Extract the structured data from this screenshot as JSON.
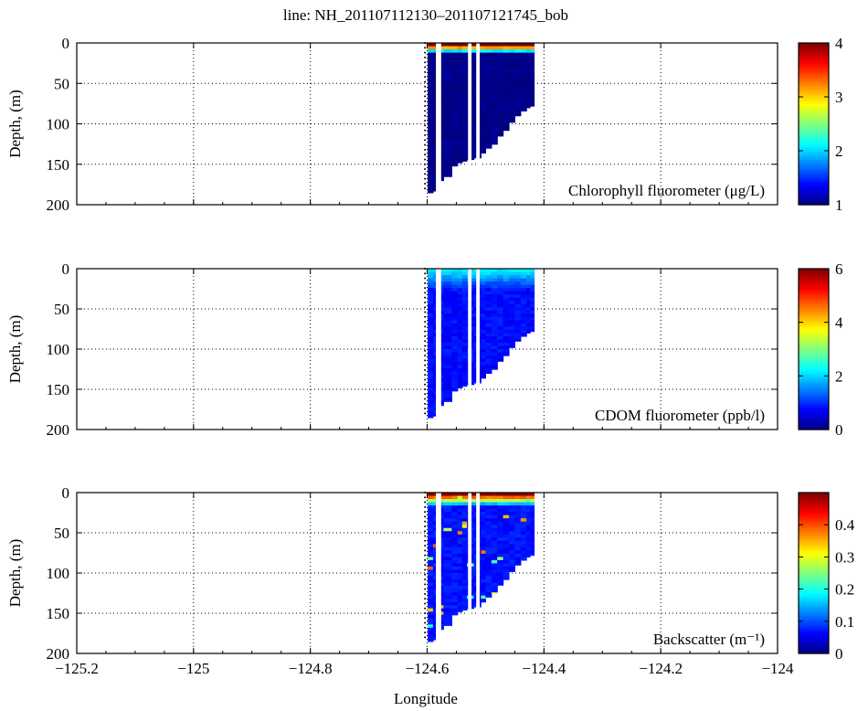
{
  "figure": {
    "title": "line: NH_201107112130–201107121745_bob",
    "xlabel": "Longitude"
  },
  "chart_data": [
    {
      "type": "heatmap",
      "variable": "chlorophyll",
      "annotation": "Chlorophyll fluorometer (μg/L)",
      "ylabel": "Depth, (m)",
      "xlim": [
        -125.2,
        -124.0
      ],
      "ylim": [
        200,
        0
      ],
      "xticks": [
        -125.2,
        -125,
        -124.8,
        -124.6,
        -124.4,
        -124.2,
        -124
      ],
      "yticks": [
        0,
        50,
        100,
        150,
        200
      ],
      "grid": true,
      "colorbar": {
        "range": [
          1,
          4
        ],
        "ticks": [
          1,
          2,
          3,
          4
        ],
        "colormap": "jet"
      },
      "values": {
        "background": 1.0,
        "surface": 4.2,
        "surface_depth": 12
      }
    },
    {
      "type": "heatmap",
      "variable": "cdom",
      "annotation": "CDOM fluorometer (ppb/l)",
      "ylabel": "Depth, (m)",
      "xlim": [
        -125.2,
        -124.0
      ],
      "ylim": [
        200,
        0
      ],
      "xticks": [
        -125.2,
        -125,
        -124.8,
        -124.6,
        -124.4,
        -124.2,
        -124
      ],
      "yticks": [
        0,
        50,
        100,
        150,
        200
      ],
      "grid": true,
      "colorbar": {
        "range": [
          0,
          6
        ],
        "ticks": [
          0,
          2,
          4,
          6
        ],
        "colormap": "jet"
      },
      "values": {
        "background": 0.8,
        "surface": 2.2,
        "surface_depth": 25
      }
    },
    {
      "type": "heatmap",
      "variable": "backscatter",
      "annotation": "Backscatter (m⁻¹)",
      "ylabel": "Depth, (m)",
      "xlim": [
        -125.2,
        -124.0
      ],
      "ylim": [
        200,
        0
      ],
      "xticks": [
        -125.2,
        -125,
        -124.8,
        -124.6,
        -124.4,
        -124.2,
        -124
      ],
      "yticks": [
        0,
        50,
        100,
        150,
        200
      ],
      "grid": true,
      "colorbar": {
        "range": [
          0,
          0.5
        ],
        "ticks": [
          0,
          0.1,
          0.2,
          0.3,
          0.4
        ],
        "colormap": "jet"
      },
      "values": {
        "background": 0.07,
        "surface": 0.5,
        "surface_depth": 15
      }
    }
  ],
  "profiles": [
    {
      "lon": -124.599,
      "max_depth": 185
    },
    {
      "lon": -124.59,
      "max_depth": 183
    },
    {
      "lon": -124.58,
      "max_depth": 170
    },
    {
      "lon": -124.572,
      "max_depth": 165
    },
    {
      "lon": -124.558,
      "max_depth": 152
    },
    {
      "lon": -124.548,
      "max_depth": 148
    },
    {
      "lon": -124.54,
      "max_depth": 146
    },
    {
      "lon": -124.532,
      "max_depth": 144
    },
    {
      "lon": -124.52,
      "max_depth": 142
    },
    {
      "lon": -124.508,
      "max_depth": 136
    },
    {
      "lon": -124.5,
      "max_depth": 130
    },
    {
      "lon": -124.49,
      "max_depth": 125
    },
    {
      "lon": -124.48,
      "max_depth": 115
    },
    {
      "lon": -124.47,
      "max_depth": 108
    },
    {
      "lon": -124.46,
      "max_depth": 98
    },
    {
      "lon": -124.45,
      "max_depth": 90
    },
    {
      "lon": -124.44,
      "max_depth": 84
    },
    {
      "lon": -124.43,
      "max_depth": 80
    },
    {
      "lon": -124.424,
      "max_depth": 78
    }
  ],
  "gaps": [
    {
      "lon_start": -124.585,
      "lon_end": -124.576
    },
    {
      "lon_start": -124.53,
      "lon_end": -124.524
    },
    {
      "lon_start": -124.516,
      "lon_end": -124.51
    }
  ]
}
